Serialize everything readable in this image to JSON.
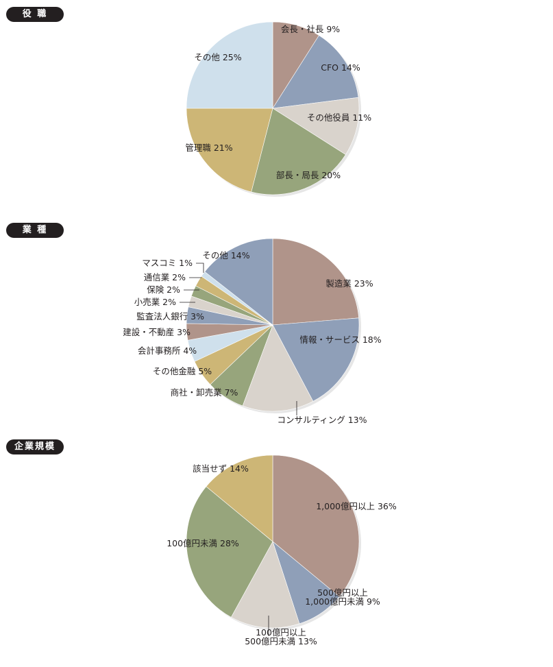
{
  "colors": {
    "brown": "#b0948a",
    "blue": "#8f9fb8",
    "gray": "#d9d3cc",
    "green": "#97a57c",
    "gold": "#cdb676",
    "light_blue": "#cfe0ec",
    "slate": "#8f9fb8"
  },
  "sections": [
    {
      "tag": "役 職"
    },
    {
      "tag": "業 種"
    },
    {
      "tag": "企業規模"
    }
  ],
  "chart_data": [
    {
      "type": "pie",
      "title": "役 職",
      "start": "12 o'clock",
      "direction": "clockwise",
      "slices": [
        {
          "label": "会長・社長 9%",
          "value": 9,
          "color": "brown"
        },
        {
          "label": "CFO 14%",
          "value": 14,
          "color": "blue"
        },
        {
          "label": "その他役員 11%",
          "value": 11,
          "color": "gray"
        },
        {
          "label": "部長・局長 20%",
          "value": 20,
          "color": "green"
        },
        {
          "label": "管理職 21%",
          "value": 21,
          "color": "gold"
        },
        {
          "label": "その他 25%",
          "value": 25,
          "color": "light_blue"
        }
      ]
    },
    {
      "type": "pie",
      "title": "業 種",
      "start": "12 o'clock",
      "direction": "clockwise",
      "slices": [
        {
          "label": "製造業 23%",
          "value": 23,
          "color": "brown"
        },
        {
          "label": "情報・サービス 18%",
          "value": 18,
          "color": "blue"
        },
        {
          "label": "コンサルティング 13%",
          "value": 13,
          "color": "gray"
        },
        {
          "label": "商社・卸売業 7%",
          "value": 7,
          "color": "green"
        },
        {
          "label": "その他金融 5%",
          "value": 5,
          "color": "gold"
        },
        {
          "label": "会計事務所 4%",
          "value": 4,
          "color": "light_blue"
        },
        {
          "label": "建設・不動産 3%",
          "value": 3,
          "color": "brown"
        },
        {
          "label": "監査法人銀行 3%",
          "value": 3,
          "color": "blue"
        },
        {
          "label": "小売業 2%",
          "value": 2,
          "color": "gray"
        },
        {
          "label": "保険 2%",
          "value": 2,
          "color": "green"
        },
        {
          "label": "通信業 2%",
          "value": 2,
          "color": "gold"
        },
        {
          "label": "マスコミ 1%",
          "value": 1,
          "color": "light_blue"
        },
        {
          "label": "その他 14%",
          "value": 14,
          "color": "slate"
        }
      ]
    },
    {
      "type": "pie",
      "title": "企業規模",
      "start": "12 o'clock",
      "direction": "clockwise",
      "slices": [
        {
          "label": "1,000億円以上 36%",
          "value": 36,
          "color": "brown"
        },
        {
          "label": "500億円以上\n1,000億円未満 9%",
          "value": 9,
          "color": "blue"
        },
        {
          "label": "100億円以上\n500億円未満 13%",
          "value": 13,
          "color": "gray"
        },
        {
          "label": "100億円未満 28%",
          "value": 28,
          "color": "green"
        },
        {
          "label": "該当せず 14%",
          "value": 14,
          "color": "gold"
        }
      ]
    }
  ]
}
